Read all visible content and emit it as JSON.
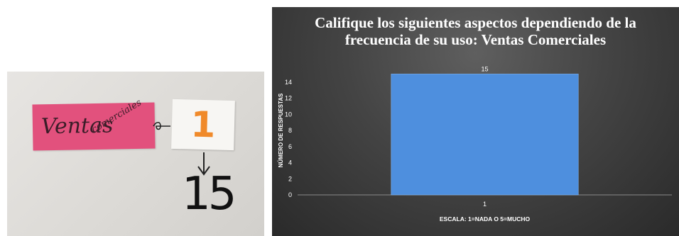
{
  "photo": {
    "card_word": "Ventas",
    "card_subword": "comerciales",
    "card_number": "1",
    "count": "15"
  },
  "chart_data": {
    "type": "bar",
    "title": "Califique los siguientes aspectos dependiendo de la frecuencia de su uso: Ventas Comerciales",
    "xlabel": "ESCALA: 1=NADA O 5=MUCHO",
    "ylabel": "NÚMERO DE RESPUESTAS",
    "categories": [
      "1"
    ],
    "values": [
      15
    ],
    "data_labels": [
      "15"
    ],
    "yticks": [
      "0",
      "2",
      "4",
      "6",
      "8",
      "10",
      "12",
      "14"
    ],
    "ylim": [
      0,
      16
    ],
    "grid": false,
    "legend": "none",
    "colors": {
      "bar": "#4e8fde",
      "background": "#3c3c3c",
      "text": "#ffffff"
    }
  }
}
